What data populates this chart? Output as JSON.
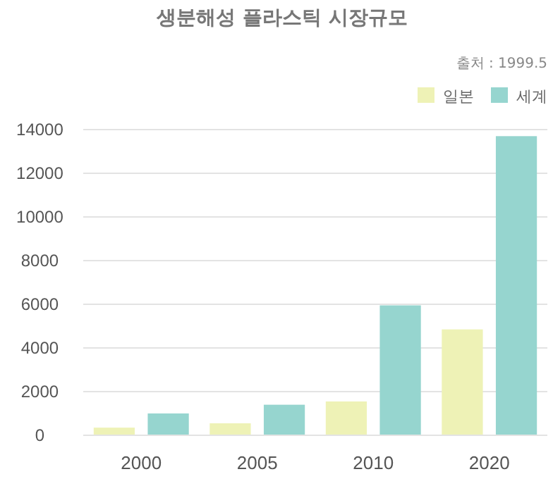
{
  "chart_data": {
    "type": "bar",
    "title": "생분해성 플라스틱 시장규모",
    "annotations": [
      "출처 : 1999.5"
    ],
    "categories": [
      "2000",
      "2005",
      "2010",
      "2020"
    ],
    "series": [
      {
        "name": "일본",
        "color": "#eef2b6",
        "values": [
          350,
          550,
          1550,
          4850
        ]
      },
      {
        "name": "세계",
        "color": "#96d5cf",
        "values": [
          1000,
          1400,
          5950,
          13700
        ]
      }
    ],
    "ylim": [
      0,
      14000
    ],
    "yticks": [
      0,
      2000,
      4000,
      6000,
      8000,
      10000,
      12000,
      14000
    ],
    "grid": "y",
    "legend": "top right"
  }
}
